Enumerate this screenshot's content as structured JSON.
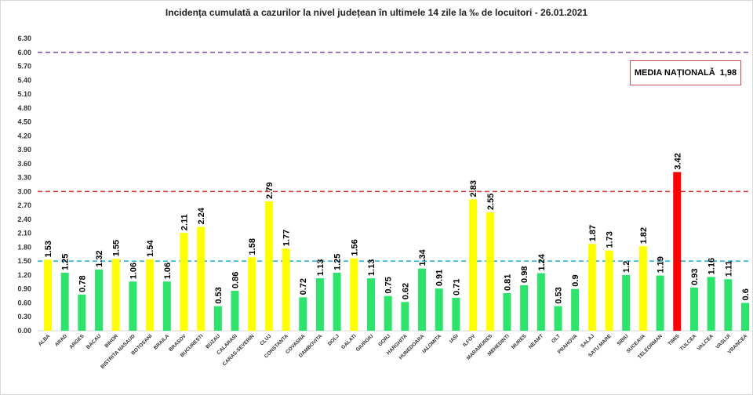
{
  "chart_data": {
    "type": "bar",
    "title": "Incidența cumulată a cazurilor la nivel județean în ultimele 14 zile la ‰ de locuitori - 26.01.2021",
    "xlabel": "",
    "ylabel": "",
    "ylim": [
      0,
      6.3
    ],
    "yticks": [
      "0.00",
      "0.30",
      "0.60",
      "0.90",
      "1.20",
      "1.50",
      "1.80",
      "2.10",
      "2.40",
      "2.70",
      "3.00",
      "3.30",
      "3.60",
      "3.90",
      "4.20",
      "4.50",
      "4.80",
      "5.10",
      "5.40",
      "5.70",
      "6.00",
      "6.30"
    ],
    "grid": false,
    "categories": [
      "ALBA",
      "ARAD",
      "ARGES",
      "BACAU",
      "BIHOR",
      "BISTRITA NASAUD",
      "BOTOSANI",
      "BRAILA",
      "BRASOV",
      "BUCURESTI",
      "BUZAU",
      "CALARASI",
      "CARAS-SEVERIN",
      "CLUJ",
      "CONSTANTA",
      "COVASNA",
      "DAMBOVITA",
      "DOLJ",
      "GALATI",
      "GIURGIU",
      "GORJ",
      "HARGHITA",
      "HUNEDOARA",
      "IALOMITA",
      "IASI",
      "ILFOV",
      "MARAMURES",
      "MEHEDINTI",
      "MURES",
      "NEAMT",
      "OLT",
      "PRAHOVA",
      "SALAJ",
      "SATU MARE",
      "SIBIU",
      "SUCEAVA",
      "TELEORMAN",
      "TIMIS",
      "TULCEA",
      "VALCEA",
      "VASLUI",
      "VRANCEA"
    ],
    "values": [
      1.53,
      1.25,
      0.78,
      1.32,
      1.55,
      1.06,
      1.54,
      1.06,
      2.11,
      2.24,
      0.53,
      0.86,
      1.58,
      2.79,
      1.77,
      0.72,
      1.13,
      1.25,
      1.56,
      1.13,
      0.75,
      0.62,
      1.34,
      0.91,
      0.71,
      2.83,
      2.55,
      0.81,
      0.98,
      1.24,
      0.53,
      0.9,
      1.87,
      1.73,
      1.2,
      1.82,
      1.19,
      3.42,
      0.93,
      1.16,
      1.11,
      0.6
    ],
    "bar_colors": [
      "yellow",
      "green",
      "green",
      "green",
      "yellow",
      "green",
      "yellow",
      "green",
      "yellow",
      "yellow",
      "green",
      "green",
      "yellow",
      "yellow",
      "yellow",
      "green",
      "green",
      "green",
      "yellow",
      "green",
      "green",
      "green",
      "green",
      "green",
      "green",
      "yellow",
      "yellow",
      "green",
      "green",
      "green",
      "green",
      "green",
      "yellow",
      "yellow",
      "green",
      "yellow",
      "green",
      "red",
      "green",
      "green",
      "green",
      "green"
    ],
    "colors": {
      "yellow": "#ffff00",
      "green": "#2ee36c",
      "red": "#ff0000"
    },
    "reference_lines": [
      {
        "value": 6.0,
        "color": "#7b4fa8",
        "style": "dashed"
      },
      {
        "value": 3.0,
        "color": "#d9352b",
        "style": "dashed"
      },
      {
        "value": 1.5,
        "color": "#2fb5d6",
        "style": "dashed"
      }
    ],
    "annotation": {
      "label": "MEDIA NAȚIONALĂ",
      "value": "1,98"
    }
  }
}
